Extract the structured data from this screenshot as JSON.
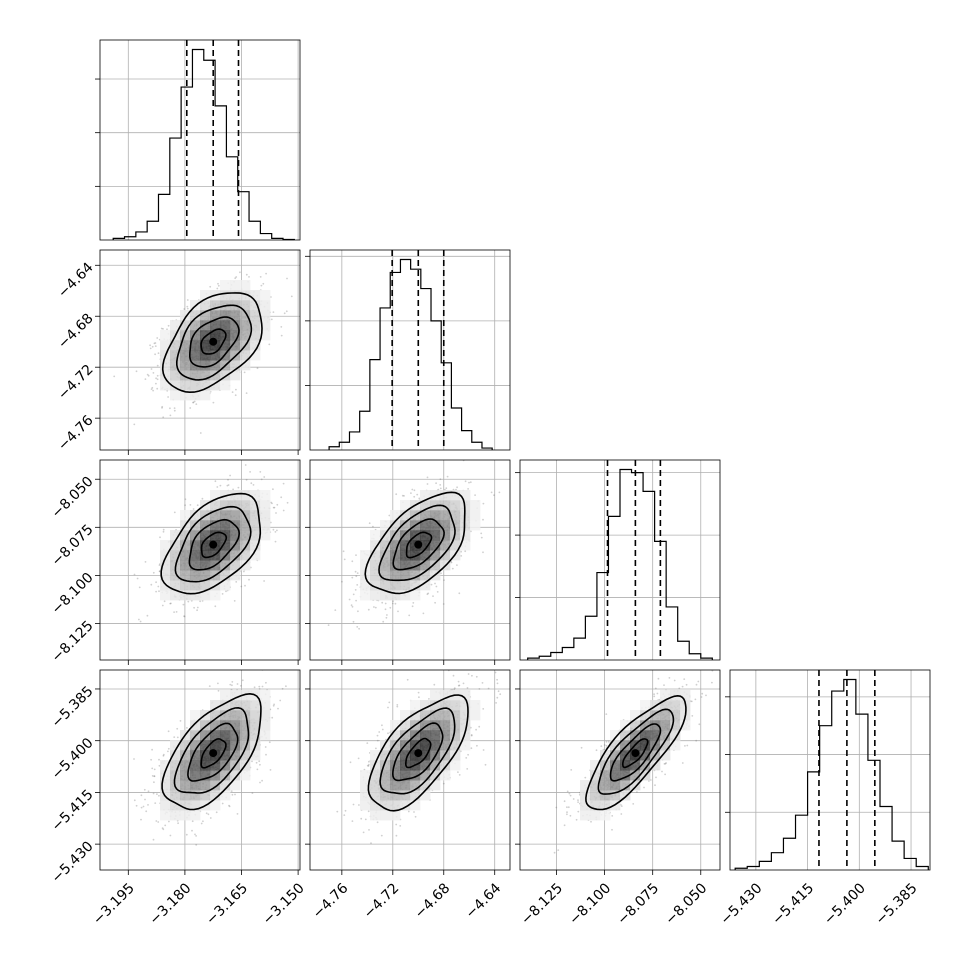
{
  "chart_data": {
    "type": "corner",
    "parameters": [
      {
        "range": [
          -3.2025,
          -3.1495
        ],
        "ticks": [
          -3.195,
          -3.18,
          -3.165,
          -3.15
        ],
        "tick_labels": [
          "−3.195",
          "−3.180",
          "−3.165",
          "−3.150"
        ],
        "quantiles": [
          -3.1795,
          -3.1725,
          -3.1658
        ],
        "hist_y_ticks": [
          10,
          20,
          30
        ],
        "hist_bins": {
          "edges": [
            -3.199,
            -3.196,
            -3.193,
            -3.19,
            -3.187,
            -3.184,
            -3.181,
            -3.178,
            -3.175,
            -3.172,
            -3.169,
            -3.166,
            -3.163,
            -3.16,
            -3.157,
            -3.154,
            -3.151
          ],
          "counts": [
            0.3,
            0.6,
            1.5,
            3.5,
            8.5,
            19,
            28.5,
            35.5,
            33.5,
            25,
            15.5,
            9,
            3.5,
            1.2,
            0.3,
            0.1
          ]
        }
      },
      {
        "range": [
          -4.785,
          -4.628
        ],
        "ticks": [
          -4.76,
          -4.72,
          -4.68,
          -4.64
        ],
        "tick_labels": [
          "−4.76",
          "−4.72",
          "−4.68",
          "−4.64"
        ],
        "quantiles": [
          -4.7205,
          -4.7,
          -4.68
        ],
        "hist_y_ticks": [
          10,
          20,
          30
        ],
        "hist_bins": {
          "edges": [
            -4.77,
            -4.762,
            -4.754,
            -4.746,
            -4.738,
            -4.73,
            -4.722,
            -4.714,
            -4.706,
            -4.698,
            -4.69,
            -4.682,
            -4.674,
            -4.666,
            -4.658,
            -4.65,
            -4.642
          ],
          "counts": [
            0.5,
            1.2,
            2.8,
            6,
            14,
            22,
            27.5,
            29.5,
            28,
            25,
            20,
            13.5,
            6.5,
            3,
            1.2,
            0.3
          ]
        }
      },
      {
        "range": [
          -8.144,
          -8.04
        ],
        "ticks": [
          -8.125,
          -8.1,
          -8.075,
          -8.05
        ],
        "tick_labels": [
          "−8.125",
          "−8.100",
          "−8.075",
          "−8.050"
        ],
        "quantiles": [
          -8.0985,
          -8.084,
          -8.071
        ],
        "hist_y_ticks": [
          10,
          20,
          30
        ],
        "hist_bins": {
          "edges": [
            -8.14,
            -8.134,
            -8.128,
            -8.122,
            -8.116,
            -8.11,
            -8.104,
            -8.098,
            -8.092,
            -8.086,
            -8.08,
            -8.074,
            -8.068,
            -8.062,
            -8.056,
            -8.05,
            -8.044
          ],
          "counts": [
            0.3,
            0.6,
            1.2,
            2,
            3.5,
            7,
            14,
            23,
            30.5,
            30,
            27,
            19,
            8.5,
            3,
            1,
            0.3
          ]
        }
      },
      {
        "range": [
          -5.4375,
          -5.3795
        ],
        "ticks": [
          -5.43,
          -5.415,
          -5.4,
          -5.385
        ],
        "tick_labels": [
          "−5.430",
          "−5.415",
          "−5.400",
          "−5.385"
        ],
        "quantiles": [
          -5.4117,
          -5.4036,
          -5.3955
        ],
        "hist_y_ticks": [
          10,
          20,
          30
        ],
        "hist_bins": {
          "edges": [
            -5.436,
            -5.4325,
            -5.429,
            -5.4255,
            -5.422,
            -5.4185,
            -5.415,
            -5.4115,
            -5.408,
            -5.4045,
            -5.401,
            -5.3975,
            -5.394,
            -5.3905,
            -5.387,
            -5.3835,
            -5.38
          ],
          "counts": [
            0.3,
            0.6,
            1.5,
            3,
            5.5,
            9.5,
            17,
            25,
            31,
            33,
            27,
            19,
            11,
            5,
            2,
            0.6
          ]
        }
      }
    ],
    "pairs": [
      {
        "x": 0,
        "y": 1,
        "mean": [
          -3.1725,
          -4.7
        ],
        "sd": [
          0.0065,
          0.0195
        ],
        "rho": 0.45
      },
      {
        "x": 0,
        "y": 2,
        "mean": [
          -3.1725,
          -8.084
        ],
        "sd": [
          0.0065,
          0.013
        ],
        "rho": 0.5
      },
      {
        "x": 1,
        "y": 2,
        "mean": [
          -4.7,
          -8.084
        ],
        "sd": [
          0.0195,
          0.013
        ],
        "rho": 0.55
      },
      {
        "x": 0,
        "y": 3,
        "mean": [
          -3.1725,
          -5.4036
        ],
        "sd": [
          0.0065,
          0.0082
        ],
        "rho": 0.6
      },
      {
        "x": 1,
        "y": 3,
        "mean": [
          -4.7,
          -5.4036
        ],
        "sd": [
          0.0195,
          0.0082
        ],
        "rho": 0.65
      },
      {
        "x": 2,
        "y": 3,
        "mean": [
          -8.084,
          -5.4036
        ],
        "sd": [
          0.013,
          0.0082
        ],
        "rho": 0.8
      }
    ],
    "contour_levels_sigma": [
      0.5,
      1,
      1.5,
      2
    ],
    "grid": true,
    "colors": {
      "line": "#000000",
      "grid": "#b0b0b0",
      "points": "#777777"
    }
  }
}
